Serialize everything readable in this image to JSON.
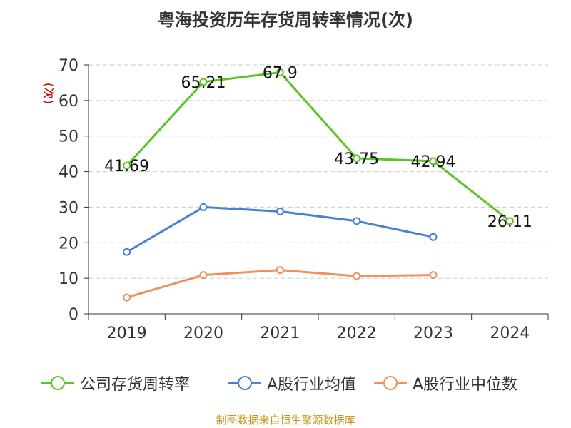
{
  "title": "粤海投资历年存货周转率情况(次)",
  "footer": "制图数据来自恒生聚源数据库",
  "colors": {
    "company": "#5cc424",
    "average": "#4a7fd4",
    "median": "#f0905a",
    "grid": "#cccccc",
    "axis": "#333333",
    "ylabel": "#cc0000"
  },
  "chart_data": {
    "type": "line",
    "title": "粤海投资历年存货周转率情况(次)",
    "xlabel": "",
    "ylabel": "(次)",
    "ylim": [
      0,
      70
    ],
    "yticks": [
      0,
      10,
      20,
      30,
      40,
      50,
      60,
      70
    ],
    "categories": [
      "2019",
      "2020",
      "2021",
      "2022",
      "2023",
      "2024"
    ],
    "grid": "horizontal dashed",
    "legend_position": "bottom",
    "series": [
      {
        "name": "公司存货周转率",
        "values": [
          41.69,
          65.21,
          67.9,
          43.75,
          42.94,
          26.11
        ],
        "labels": [
          "41.69",
          "65.21",
          "67.9",
          "43.75",
          "42.94",
          "26.11"
        ]
      },
      {
        "name": "A股行业均值",
        "values": [
          17.4,
          30.0,
          28.8,
          26.1,
          21.6,
          null
        ]
      },
      {
        "name": "A股行业中位数",
        "values": [
          4.6,
          10.9,
          12.3,
          10.6,
          10.9,
          null
        ]
      }
    ]
  }
}
